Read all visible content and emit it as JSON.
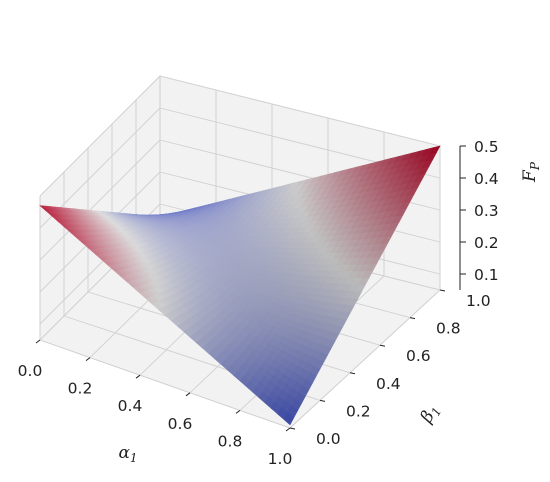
{
  "chart_data": {
    "type": "surface",
    "axes": {
      "x": {
        "label": "α",
        "label_sub": "1",
        "range": [
          0,
          1
        ],
        "ticks": [
          "0.0",
          "0.2",
          "0.4",
          "0.6",
          "0.8",
          "1.0"
        ]
      },
      "y": {
        "label": "β",
        "label_sub": "1",
        "range": [
          0,
          1
        ],
        "ticks": [
          "0.0",
          "0.2",
          "0.4",
          "0.6",
          "0.8",
          "1.0"
        ]
      },
      "z": {
        "label": "F",
        "label_sub": "P",
        "range": [
          0.05,
          0.5
        ],
        "ticks": [
          "0.1",
          "0.2",
          "0.3",
          "0.4",
          "0.5"
        ]
      }
    },
    "colormap": "coolwarm",
    "colors": {
      "low": "#3b4cc0",
      "mid": "#dddddd",
      "high": "#b40426"
    },
    "grid": true,
    "corner_values": {
      "alpha0_beta0": 0.47,
      "alpha1_beta0": 0.06,
      "alpha0_beta1": 0.06,
      "alpha1_beta1": 0.5
    },
    "grid_resolution": 40
  }
}
